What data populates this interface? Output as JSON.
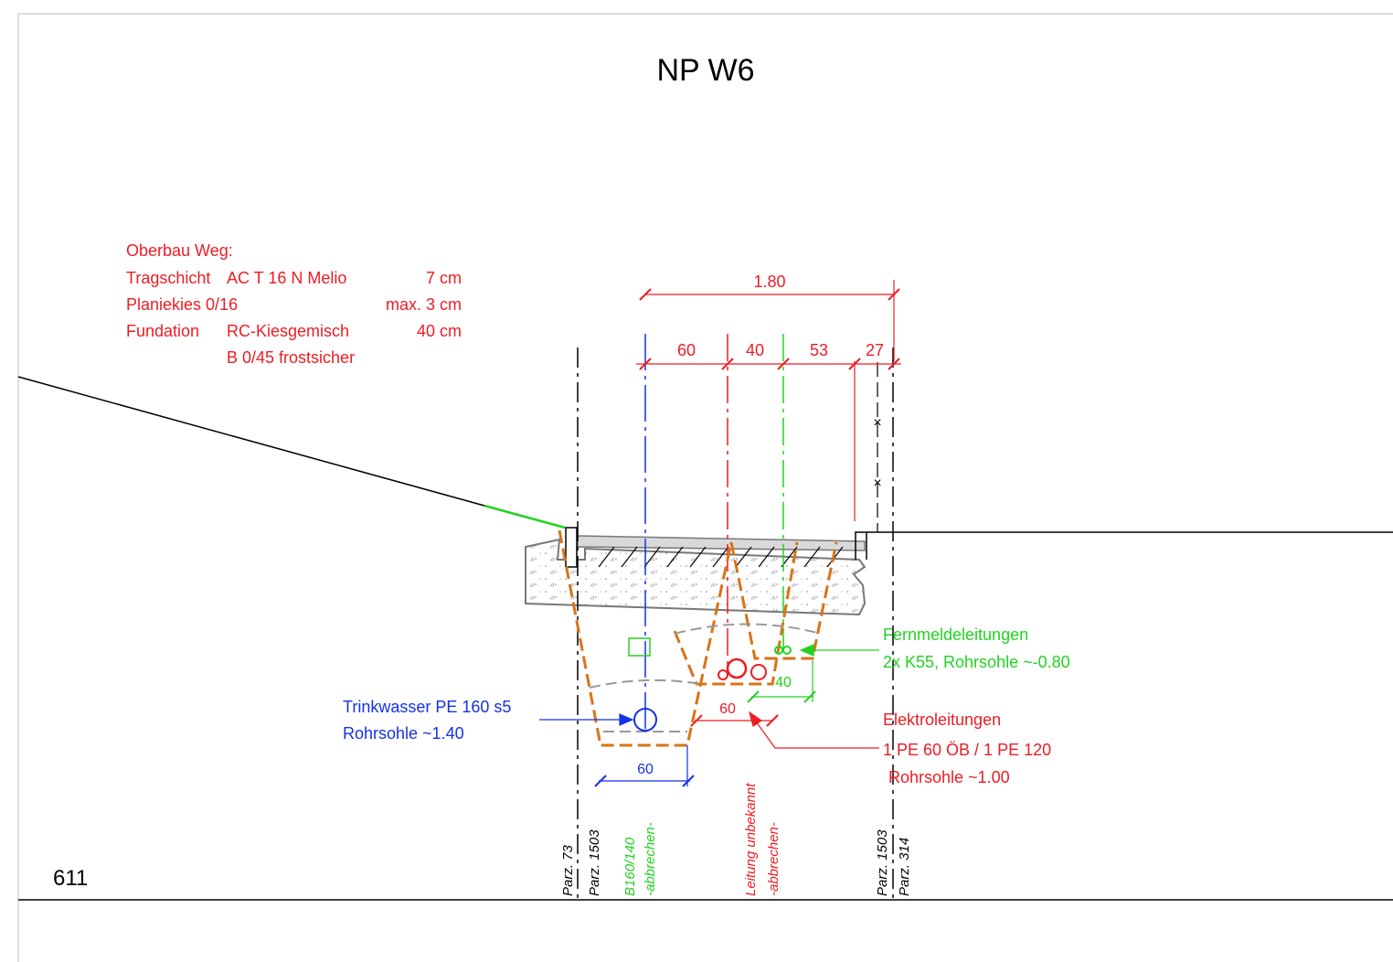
{
  "drawing": {
    "title": "NP W6",
    "station": "611"
  },
  "colors": {
    "red": "#ee1c23",
    "blue": "#1432e6",
    "green": "#22d322",
    "orange": "#d97316",
    "black": "#000000",
    "gray": "#777777"
  },
  "oberbau": {
    "heading": "Oberbau Weg:",
    "rows": [
      {
        "name": "Tragschicht",
        "material": "AC T 16 N Melio",
        "value": "7 cm"
      },
      {
        "name": "Planiekies 0/16",
        "material": "",
        "value": "max. 3 cm"
      },
      {
        "name": "Fundation",
        "material": "RC-Kiesgemisch",
        "value": "40 cm"
      },
      {
        "name": "",
        "material": "B 0/45 frostsicher",
        "value": ""
      }
    ]
  },
  "dimensions": {
    "total": "1.80",
    "segments": [
      "60",
      "40",
      "53",
      "27"
    ],
    "trench_water": "60",
    "trench_elektro": "60",
    "trench_fernmelde": "40"
  },
  "labels": {
    "trinkwasser_1": "Trinkwasser PE 160 s5",
    "trinkwasser_2": "Rohrsohle ~1.40",
    "fernmelde_1": "Fernmeldeleitungen",
    "fernmelde_2": "2x K55, Rohrsohle ~-0.80",
    "elektro_1": "Elektroleitungen",
    "elektro_2": "1 PE 60 ÖB / 1 PE 120",
    "elektro_3": "Rohrsohle ~1.00"
  },
  "vertical_labels": {
    "parz_73": "Parz. 73",
    "parz_1503_left": "Parz. 1503",
    "b160_1": "B160/140",
    "b160_2": "-abbrechen-",
    "leitung_1": "Leitung unbekannt",
    "leitung_2": "-abbrechen-",
    "parz_1503_right": "Parz. 1503",
    "parz_314": "Parz. 314"
  }
}
